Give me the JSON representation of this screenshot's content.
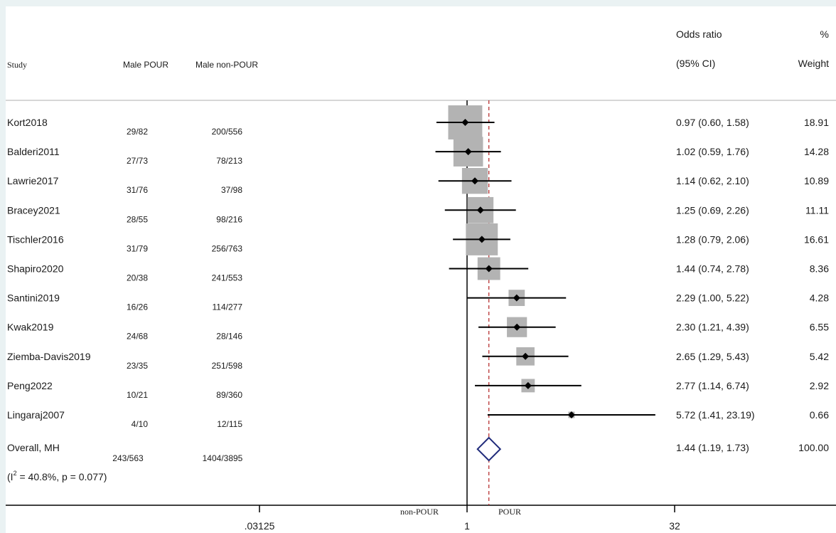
{
  "chart_data": {
    "type": "forest",
    "headers": {
      "study": "Study",
      "group1": "Male POUR",
      "group2": "Male non-POUR",
      "or_line1": "Odds ratio",
      "or_line2": "(95% CI)",
      "wt_line1": "%",
      "wt_line2": "Weight"
    },
    "studies": [
      {
        "name": "Kort2018",
        "g1": "29/82",
        "g2": "200/556",
        "or": 0.97,
        "lo": 0.6,
        "hi": 1.58,
        "ci_text": "0.97 (0.60, 1.58)",
        "weight": 18.91,
        "weight_text": "18.91"
      },
      {
        "name": "Balderi2011",
        "g1": "27/73",
        "g2": "78/213",
        "or": 1.02,
        "lo": 0.59,
        "hi": 1.76,
        "ci_text": "1.02 (0.59, 1.76)",
        "weight": 14.28,
        "weight_text": "14.28"
      },
      {
        "name": "Lawrie2017",
        "g1": "31/76",
        "g2": "37/98",
        "or": 1.14,
        "lo": 0.62,
        "hi": 2.1,
        "ci_text": "1.14 (0.62, 2.10)",
        "weight": 10.89,
        "weight_text": "10.89"
      },
      {
        "name": "Bracey2021",
        "g1": "28/55",
        "g2": "98/216",
        "or": 1.25,
        "lo": 0.69,
        "hi": 2.26,
        "ci_text": "1.25 (0.69, 2.26)",
        "weight": 11.11,
        "weight_text": "11.11"
      },
      {
        "name": "Tischler2016",
        "g1": "31/79",
        "g2": "256/763",
        "or": 1.28,
        "lo": 0.79,
        "hi": 2.06,
        "ci_text": "1.28 (0.79, 2.06)",
        "weight": 16.61,
        "weight_text": "16.61"
      },
      {
        "name": "Shapiro2020",
        "g1": "20/38",
        "g2": "241/553",
        "or": 1.44,
        "lo": 0.74,
        "hi": 2.78,
        "ci_text": "1.44 (0.74, 2.78)",
        "weight": 8.36,
        "weight_text": "8.36"
      },
      {
        "name": "Santini2019",
        "g1": "16/26",
        "g2": "114/277",
        "or": 2.29,
        "lo": 1.0,
        "hi": 5.22,
        "ci_text": "2.29 (1.00, 5.22)",
        "weight": 4.28,
        "weight_text": "4.28"
      },
      {
        "name": "Kwak2019",
        "g1": "24/68",
        "g2": "28/146",
        "or": 2.3,
        "lo": 1.21,
        "hi": 4.39,
        "ci_text": "2.30 (1.21, 4.39)",
        "weight": 6.55,
        "weight_text": "6.55"
      },
      {
        "name": "Ziemba-Davis2019",
        "g1": "23/35",
        "g2": "251/598",
        "or": 2.65,
        "lo": 1.29,
        "hi": 5.43,
        "ci_text": "2.65 (1.29, 5.43)",
        "weight": 5.42,
        "weight_text": "5.42"
      },
      {
        "name": "Peng2022",
        "g1": "10/21",
        "g2": "89/360",
        "or": 2.77,
        "lo": 1.14,
        "hi": 6.74,
        "ci_text": "2.77 (1.14, 6.74)",
        "weight": 2.92,
        "weight_text": "2.92"
      },
      {
        "name": "Lingaraj2007",
        "g1": "4/10",
        "g2": "12/115",
        "or": 5.72,
        "lo": 1.41,
        "hi": 23.19,
        "ci_text": "5.72 (1.41, 23.19)",
        "weight": 0.66,
        "weight_text": "0.66"
      }
    ],
    "overall": {
      "name": "Overall, MH",
      "g1": "243/563",
      "g2": "1404/3895",
      "or": 1.44,
      "lo": 1.19,
      "hi": 1.73,
      "ci_text": "1.44 (1.19, 1.73)",
      "weight_text": "100.00"
    },
    "heterogeneity": {
      "prefix": "(I",
      "sup": "2",
      "suffix": " = 40.8%, p = 0.077)"
    },
    "x_scale": "log",
    "xlim": [
      0.03125,
      32
    ],
    "x_ticks": [
      {
        "value": 0.03125,
        "label": ".03125"
      },
      {
        "value": 1,
        "label": "1"
      },
      {
        "value": 32,
        "label": "32"
      }
    ],
    "favors_left": "non-POUR",
    "favors_right": "POUR",
    "colors": {
      "box": "#b3b3b3",
      "line": "#000000",
      "diamond": "#1f2a7a",
      "null_line": "#000000",
      "overall_line": "#b22222"
    }
  }
}
